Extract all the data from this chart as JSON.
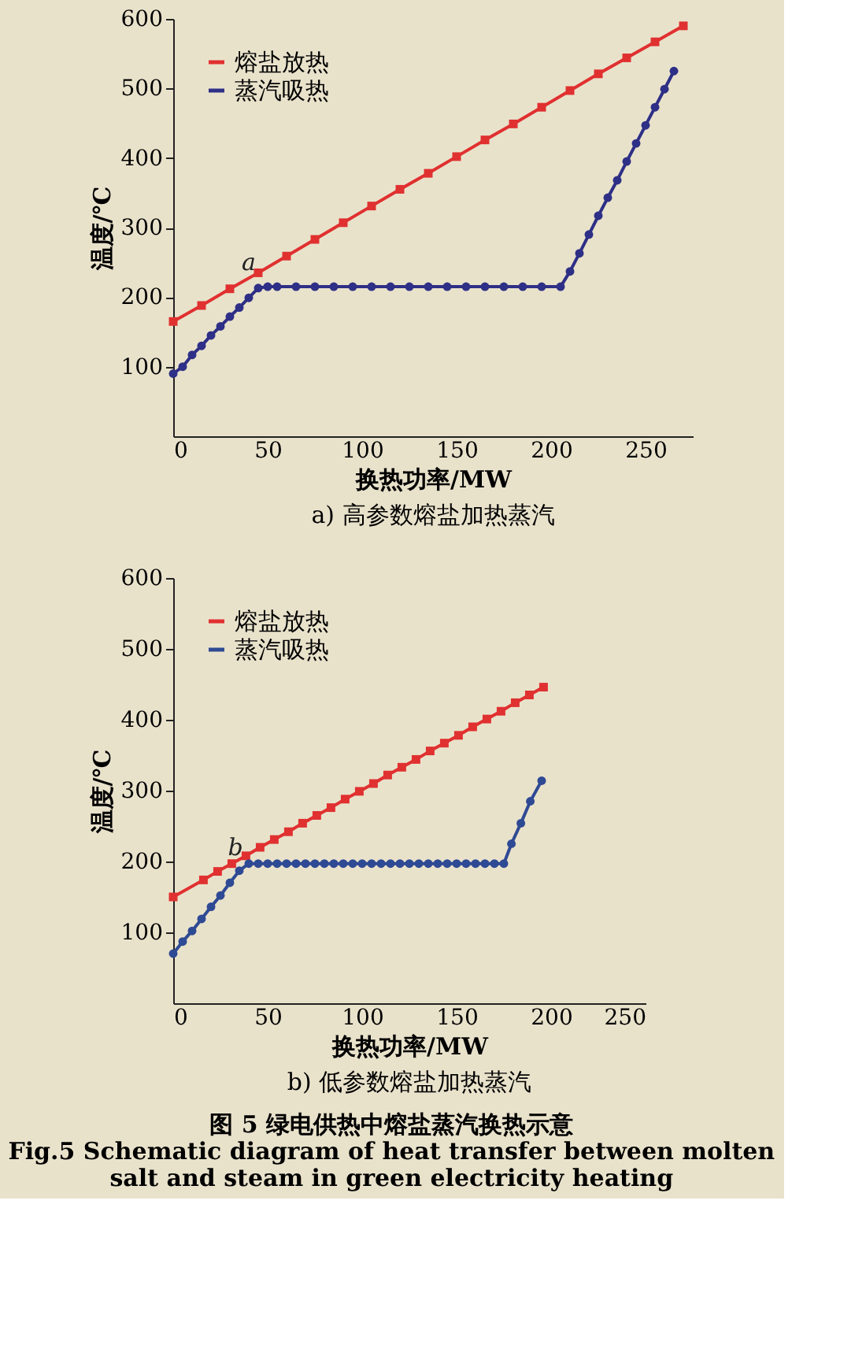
{
  "chart_data": [
    {
      "type": "line",
      "title": "a) 高参数熔盐加热蒸汽",
      "xlabel": "换热功率/MW",
      "ylabel": "温度/℃",
      "xlim": [
        0,
        275
      ],
      "ylim": [
        0,
        600
      ],
      "xticks": [
        0,
        50,
        100,
        150,
        200,
        250
      ],
      "yticks": [
        100,
        200,
        300,
        400,
        500,
        600
      ],
      "grid": false,
      "legend": "top left",
      "series": [
        {
          "name": "熔盐放热",
          "color": "#e03030",
          "marker": "square",
          "x": [
            0,
            15,
            30,
            45,
            60,
            75,
            90,
            105,
            120,
            135,
            150,
            165,
            180,
            195,
            210,
            225,
            240,
            255,
            270
          ],
          "values": [
            165,
            188,
            212,
            235,
            259,
            283,
            307,
            331,
            355,
            378,
            402,
            426,
            449,
            473,
            497,
            521,
            544,
            567,
            590
          ]
        },
        {
          "name": "蒸汽吸热",
          "color": "#2e2f86",
          "marker": "circle",
          "x": [
            0,
            5,
            10,
            15,
            20,
            25,
            30,
            35,
            40,
            45,
            50,
            55,
            65,
            75,
            85,
            95,
            105,
            115,
            125,
            135,
            145,
            155,
            165,
            175,
            185,
            195,
            205,
            210,
            215,
            220,
            225,
            230,
            235,
            240,
            245,
            250,
            255,
            260,
            265
          ],
          "values": [
            90,
            100,
            117,
            130,
            145,
            158,
            172,
            185,
            199,
            213,
            215,
            215,
            215,
            215,
            215,
            215,
            215,
            215,
            215,
            215,
            215,
            215,
            215,
            215,
            215,
            215,
            215,
            237,
            263,
            290,
            317,
            343,
            368,
            395,
            421,
            447,
            473,
            499,
            525
          ]
        }
      ],
      "annotations": [
        {
          "text": "a",
          "x": 40,
          "y": 250
        }
      ]
    },
    {
      "type": "line",
      "title": "b) 低参数熔盐加热蒸汽",
      "xlabel": "换热功率/MW",
      "ylabel": "温度/℃",
      "xlim": [
        0,
        250
      ],
      "ylim": [
        0,
        600
      ],
      "xticks": [
        0,
        50,
        100,
        150,
        200,
        250
      ],
      "yticks": [
        100,
        200,
        300,
        400,
        500,
        600
      ],
      "grid": false,
      "legend": "top left",
      "series": [
        {
          "name": "熔盐放热",
          "color": "#e03030",
          "marker": "square",
          "x": [
            0,
            16,
            23.5,
            31,
            38.5,
            46,
            53.5,
            61,
            68.5,
            76,
            83.5,
            91,
            98.5,
            106,
            113.5,
            121,
            128.5,
            136,
            143.5,
            151,
            158.5,
            166,
            173.5,
            181,
            188.5,
            196
          ],
          "values": [
            150,
            174,
            186,
            197,
            208,
            220,
            231,
            242,
            254,
            265,
            276,
            288,
            299,
            310,
            322,
            333,
            344,
            356,
            367,
            378,
            390,
            401,
            412,
            424,
            435,
            446
          ]
        },
        {
          "name": "蒸汽吸热",
          "color": "#2f4a94",
          "marker": "circle",
          "x": [
            0,
            5,
            10,
            15,
            20,
            25,
            30,
            35,
            40,
            45,
            50,
            55,
            60,
            65,
            70,
            75,
            80,
            85,
            90,
            95,
            100,
            105,
            110,
            115,
            120,
            125,
            130,
            135,
            140,
            145,
            150,
            155,
            160,
            165,
            170,
            175,
            179,
            184,
            189,
            195
          ],
          "values": [
            70,
            87,
            102,
            119,
            136,
            152,
            170,
            187,
            197,
            197,
            197,
            197,
            197,
            197,
            197,
            197,
            197,
            197,
            197,
            197,
            197,
            197,
            197,
            197,
            197,
            197,
            197,
            197,
            197,
            197,
            197,
            197,
            197,
            197,
            197,
            197,
            225,
            254,
            285,
            314
          ]
        }
      ],
      "annotations": [
        {
          "text": "b",
          "x": 33,
          "y": 220
        },
        "图 5  绿电供热中熔盐蒸汽换热示意",
        "Fig.5 Schematic diagram of heat transfer between molten",
        "salt and steam in green electricity heating"
      ]
    }
  ]
}
